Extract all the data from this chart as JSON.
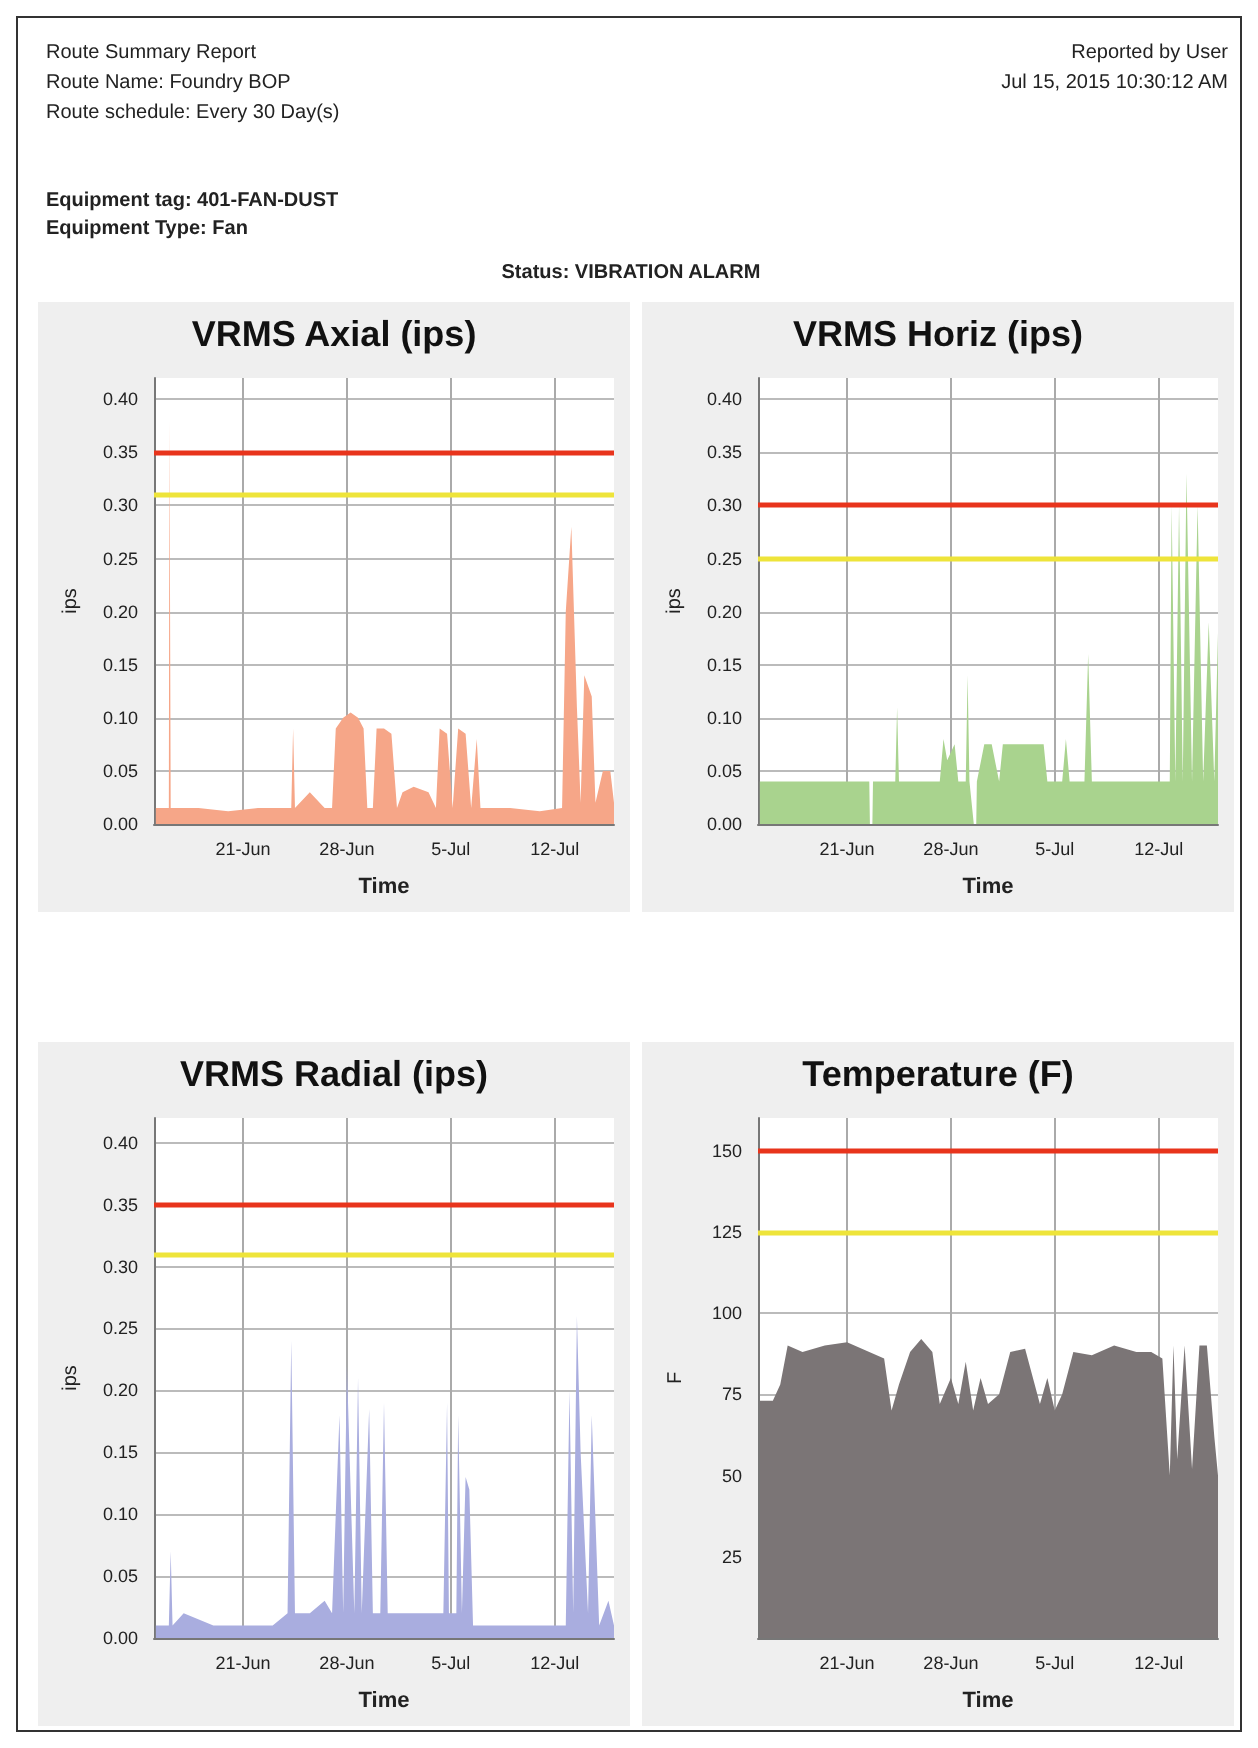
{
  "chart_data": [
    {
      "type": "other",
      "annotations": [
        "Route Summary Report",
        "Route Name: Foundry BOP",
        "Route schedule: Every 30 Day(s)",
        "Reported by User",
        "Jul 15, 2015 10:30:12 AM",
        "Equipment tag: 401-FAN-DUST",
        "Equipment Type: Fan",
        "Status: VIBRATION ALARM"
      ]
    },
    {
      "type": "area",
      "title": "VRMS Axial (ips)",
      "xlabel": "Time",
      "ylabel": "ips",
      "grid": true,
      "xlim": [
        "2015-06-15",
        "2015-07-16"
      ],
      "xticks": [
        {
          "value": "2015-06-21",
          "label": "21-Jun"
        },
        {
          "value": "2015-06-28",
          "label": "28-Jun"
        },
        {
          "value": "2015-07-05",
          "label": "5-Jul"
        },
        {
          "value": "2015-07-12",
          "label": "12-Jul"
        }
      ],
      "ylim": [
        0,
        0.42
      ],
      "yticks": [
        {
          "value": 0,
          "label": "0.00"
        },
        {
          "value": 0.05,
          "label": "0.05"
        },
        {
          "value": 0.1,
          "label": "0.10"
        },
        {
          "value": 0.15,
          "label": "0.15"
        },
        {
          "value": 0.2,
          "label": "0.20"
        },
        {
          "value": 0.25,
          "label": "0.25"
        },
        {
          "value": 0.3,
          "label": "0.30"
        },
        {
          "value": 0.35,
          "label": "0.35"
        },
        {
          "value": 0.4,
          "label": "0.40"
        }
      ],
      "ref_lines": [
        {
          "axis": "y",
          "value": 0.35,
          "color": "#e8341c"
        },
        {
          "axis": "y",
          "value": 0.31,
          "color": "#eee43a"
        }
      ],
      "series": [
        {
          "color": "#f6a688",
          "x": [
            "2015-06-15T03:00",
            "2015-06-16T00:00",
            "2015-06-16T01:00",
            "2015-06-16T03:00",
            "2015-06-18T00:00",
            "2015-06-20T00:00",
            "2015-06-22T00:00",
            "2015-06-24T06:00",
            "2015-06-24T09:00",
            "2015-06-24T12:00",
            "2015-06-25T12:00",
            "2015-06-26T12:00",
            "2015-06-27T00:00",
            "2015-06-27T06:00",
            "2015-06-27T18:00",
            "2015-06-28T06:00",
            "2015-06-28T18:00",
            "2015-06-29T03:00",
            "2015-06-29T09:00",
            "2015-06-29T18:00",
            "2015-06-30T00:00",
            "2015-06-30T12:00",
            "2015-07-01T00:00",
            "2015-07-01T09:00",
            "2015-07-01T18:00",
            "2015-07-02T12:00",
            "2015-07-03T12:00",
            "2015-07-04T00:00",
            "2015-07-04T06:00",
            "2015-07-04T18:00",
            "2015-07-05T03:00",
            "2015-07-05T12:00",
            "2015-07-06T00:00",
            "2015-07-06T09:00",
            "2015-07-06T18:00",
            "2015-07-07T00:00",
            "2015-07-09T00:00",
            "2015-07-11T00:00",
            "2015-07-12T12:00",
            "2015-07-12T18:00",
            "2015-07-13T03:00",
            "2015-07-13T12:00",
            "2015-07-13T18:00",
            "2015-07-14T00:00",
            "2015-07-14T12:00",
            "2015-07-14T18:00",
            "2015-07-15T06:00",
            "2015-07-15T18:00",
            "2015-07-16T00:00"
          ],
          "values": [
            0.015,
            0.015,
            0.38,
            0.015,
            0.015,
            0.012,
            0.015,
            0.015,
            0.09,
            0.015,
            0.03,
            0.015,
            0.015,
            0.09,
            0.1,
            0.105,
            0.1,
            0.09,
            0.015,
            0.015,
            0.09,
            0.09,
            0.085,
            0.015,
            0.03,
            0.035,
            0.03,
            0.015,
            0.09,
            0.085,
            0.015,
            0.09,
            0.085,
            0.015,
            0.08,
            0.015,
            0.015,
            0.012,
            0.015,
            0.2,
            0.28,
            0.11,
            0.02,
            0.14,
            0.12,
            0.02,
            0.05,
            0.05,
            0.02
          ]
        }
      ]
    },
    {
      "type": "area",
      "title": "VRMS Horiz (ips)",
      "xlabel": "Time",
      "ylabel": "ips",
      "grid": true,
      "xlim": [
        "2015-06-15",
        "2015-07-16"
      ],
      "xticks": [
        {
          "value": "2015-06-21",
          "label": "21-Jun"
        },
        {
          "value": "2015-06-28",
          "label": "28-Jun"
        },
        {
          "value": "2015-07-05",
          "label": "5-Jul"
        },
        {
          "value": "2015-07-12",
          "label": "12-Jul"
        }
      ],
      "ylim": [
        0,
        0.42
      ],
      "yticks": [
        {
          "value": 0,
          "label": "0.00"
        },
        {
          "value": 0.05,
          "label": "0.05"
        },
        {
          "value": 0.1,
          "label": "0.10"
        },
        {
          "value": 0.15,
          "label": "0.15"
        },
        {
          "value": 0.2,
          "label": "0.20"
        },
        {
          "value": 0.25,
          "label": "0.25"
        },
        {
          "value": 0.3,
          "label": "0.30"
        },
        {
          "value": 0.35,
          "label": "0.35"
        },
        {
          "value": 0.4,
          "label": "0.40"
        }
      ],
      "ref_lines": [
        {
          "axis": "y",
          "value": 0.3,
          "color": "#e8341c"
        },
        {
          "axis": "y",
          "value": 0.25,
          "color": "#eee43a"
        }
      ],
      "series": [
        {
          "color": "#a9d38e",
          "x": [
            "2015-06-15T03:00",
            "2015-06-17T00:00",
            "2015-06-19T00:00",
            "2015-06-21T00:00",
            "2015-06-22T12:00",
            "2015-06-22T13:00",
            "2015-06-22T17:00",
            "2015-06-22T18:00",
            "2015-06-24T00:00",
            "2015-06-24T06:00",
            "2015-06-24T09:00",
            "2015-06-24T12:00",
            "2015-06-26T00:00",
            "2015-06-27T06:00",
            "2015-06-27T12:00",
            "2015-06-27T18:00",
            "2015-06-28T06:00",
            "2015-06-28T12:00",
            "2015-06-29T00:00",
            "2015-06-29T03:00",
            "2015-06-29T06:00",
            "2015-06-29T13:00",
            "2015-06-29T17:00",
            "2015-06-29T18:00",
            "2015-06-30T06:00",
            "2015-06-30T18:00",
            "2015-07-01T06:00",
            "2015-07-01T12:00",
            "2015-07-02T12:00",
            "2015-07-03T12:00",
            "2015-07-04T06:00",
            "2015-07-04T12:00",
            "2015-07-05T12:00",
            "2015-07-05T18:00",
            "2015-07-06T00:00",
            "2015-07-07T00:00",
            "2015-07-07T06:00",
            "2015-07-07T12:00",
            "2015-07-09T00:00",
            "2015-07-11T00:00",
            "2015-07-12T18:00",
            "2015-07-12T21:00",
            "2015-07-13T03:00",
            "2015-07-13T09:00",
            "2015-07-13T15:00",
            "2015-07-13T21:00",
            "2015-07-14T06:00",
            "2015-07-14T15:00",
            "2015-07-15T00:00",
            "2015-07-15T09:00",
            "2015-07-15T18:00",
            "2015-07-16T00:00"
          ],
          "values": [
            0.04,
            0.04,
            0.04,
            0.04,
            0.04,
            0,
            0,
            0.04,
            0.04,
            0.04,
            0.11,
            0.04,
            0.04,
            0.04,
            0.08,
            0.06,
            0.075,
            0.04,
            0.04,
            0.14,
            0.04,
            0,
            0,
            0.04,
            0.075,
            0.075,
            0.04,
            0.075,
            0.075,
            0.075,
            0.075,
            0.04,
            0.04,
            0.08,
            0.04,
            0.04,
            0.16,
            0.04,
            0.04,
            0.04,
            0.04,
            0.3,
            0.04,
            0.3,
            0.04,
            0.33,
            0.04,
            0.3,
            0.04,
            0.19,
            0.04,
            0.18
          ]
        }
      ]
    },
    {
      "type": "area",
      "title": "VRMS Radial (ips)",
      "xlabel": "Time",
      "ylabel": "ips",
      "grid": true,
      "xlim": [
        "2015-06-15",
        "2015-07-16"
      ],
      "xticks": [
        {
          "value": "2015-06-21",
          "label": "21-Jun"
        },
        {
          "value": "2015-06-28",
          "label": "28-Jun"
        },
        {
          "value": "2015-07-05",
          "label": "5-Jul"
        },
        {
          "value": "2015-07-12",
          "label": "12-Jul"
        }
      ],
      "ylim": [
        0,
        0.42
      ],
      "yticks": [
        {
          "value": 0,
          "label": "0.00"
        },
        {
          "value": 0.05,
          "label": "0.05"
        },
        {
          "value": 0.1,
          "label": "0.10"
        },
        {
          "value": 0.15,
          "label": "0.15"
        },
        {
          "value": 0.2,
          "label": "0.20"
        },
        {
          "value": 0.25,
          "label": "0.25"
        },
        {
          "value": 0.3,
          "label": "0.30"
        },
        {
          "value": 0.35,
          "label": "0.35"
        },
        {
          "value": 0.4,
          "label": "0.40"
        }
      ],
      "ref_lines": [
        {
          "axis": "y",
          "value": 0.35,
          "color": "#e8341c"
        },
        {
          "axis": "y",
          "value": 0.31,
          "color": "#eee43a"
        }
      ],
      "series": [
        {
          "color": "#a9addf",
          "x": [
            "2015-06-15T03:00",
            "2015-06-16T00:00",
            "2015-06-16T03:00",
            "2015-06-16T06:00",
            "2015-06-17T00:00",
            "2015-06-19T00:00",
            "2015-06-21T00:00",
            "2015-06-23T00:00",
            "2015-06-24T00:00",
            "2015-06-24T06:00",
            "2015-06-24T12:00",
            "2015-06-25T12:00",
            "2015-06-26T12:00",
            "2015-06-27T00:00",
            "2015-06-27T12:00",
            "2015-06-27T18:00",
            "2015-06-28T00:00",
            "2015-06-28T12:00",
            "2015-06-28T18:00",
            "2015-06-29T00:00",
            "2015-06-29T12:00",
            "2015-06-29T18:00",
            "2015-06-30T06:00",
            "2015-06-30T12:00",
            "2015-06-30T18:00",
            "2015-07-01T06:00",
            "2015-07-01T12:00",
            "2015-07-02T12:00",
            "2015-07-03T12:00",
            "2015-07-04T12:00",
            "2015-07-04T18:00",
            "2015-07-04T21:00",
            "2015-07-05T09:00",
            "2015-07-05T12:00",
            "2015-07-05T18:00",
            "2015-07-06T00:00",
            "2015-07-06T06:00",
            "2015-07-06T12:00",
            "2015-07-07T00:00",
            "2015-07-09T00:00",
            "2015-07-11T00:00",
            "2015-07-12T18:00",
            "2015-07-13T00:00",
            "2015-07-13T06:00",
            "2015-07-13T12:00",
            "2015-07-13T18:00",
            "2015-07-14T06:00",
            "2015-07-14T12:00",
            "2015-07-15T00:00",
            "2015-07-15T15:00",
            "2015-07-16T00:00"
          ],
          "values": [
            0.01,
            0.01,
            0.07,
            0.01,
            0.02,
            0.01,
            0.01,
            0.01,
            0.02,
            0.24,
            0.02,
            0.02,
            0.03,
            0.02,
            0.18,
            0.02,
            0.22,
            0.02,
            0.21,
            0.02,
            0.185,
            0.02,
            0.02,
            0.19,
            0.02,
            0.02,
            0.02,
            0.02,
            0.02,
            0.02,
            0.19,
            0.02,
            0.02,
            0.18,
            0.02,
            0.13,
            0.12,
            0.01,
            0.01,
            0.01,
            0.01,
            0.01,
            0.2,
            0.02,
            0.26,
            0.15,
            0.02,
            0.18,
            0.01,
            0.03,
            0.01
          ]
        }
      ]
    },
    {
      "type": "area",
      "title": "Temperature (F)",
      "xlabel": "Time",
      "ylabel": "F",
      "grid": true,
      "xlim": [
        "2015-06-15",
        "2015-07-16"
      ],
      "xticks": [
        {
          "value": "2015-06-21",
          "label": "21-Jun"
        },
        {
          "value": "2015-06-28",
          "label": "28-Jun"
        },
        {
          "value": "2015-07-05",
          "label": "5-Jul"
        },
        {
          "value": "2015-07-12",
          "label": "12-Jul"
        }
      ],
      "ylim": [
        0,
        160
      ],
      "yticks": [
        25,
        50,
        75,
        100,
        125,
        150
      ],
      "ref_lines": [
        {
          "axis": "y",
          "value": 150,
          "color": "#e8341c"
        },
        {
          "axis": "y",
          "value": 125,
          "color": "#eee43a"
        }
      ],
      "series": [
        {
          "color": "#7b7576",
          "x": [
            "2015-06-15T03:00",
            "2015-06-16T00:00",
            "2015-06-16T12:00",
            "2015-06-17T00:00",
            "2015-06-18T00:00",
            "2015-06-19T12:00",
            "2015-06-21T00:00",
            "2015-06-22T12:00",
            "2015-06-23T12:00",
            "2015-06-24T00:00",
            "2015-06-24T12:00",
            "2015-06-25T06:00",
            "2015-06-26T00:00",
            "2015-06-26T18:00",
            "2015-06-27T06:00",
            "2015-06-28T00:00",
            "2015-06-28T12:00",
            "2015-06-29T00:00",
            "2015-06-29T12:00",
            "2015-06-30T00:00",
            "2015-06-30T12:00",
            "2015-07-01T06:00",
            "2015-07-02T00:00",
            "2015-07-03T00:00",
            "2015-07-04T00:00",
            "2015-07-04T12:00",
            "2015-07-05T00:00",
            "2015-07-05T12:00",
            "2015-07-06T06:00",
            "2015-07-07T12:00",
            "2015-07-09T00:00",
            "2015-07-10T12:00",
            "2015-07-11T12:00",
            "2015-07-12T06:00",
            "2015-07-12T18:00",
            "2015-07-13T00:00",
            "2015-07-13T06:00",
            "2015-07-13T18:00",
            "2015-07-14T06:00",
            "2015-07-14T18:00",
            "2015-07-15T06:00",
            "2015-07-15T18:00",
            "2015-07-16T00:00"
          ],
          "values": [
            73,
            73,
            78,
            90,
            88,
            90,
            91,
            88,
            86,
            70,
            78,
            88,
            92,
            88,
            72,
            80,
            72,
            85,
            70,
            80,
            72,
            75,
            88,
            89,
            72,
            80,
            70,
            75,
            88,
            87,
            90,
            88,
            88,
            86,
            50,
            90,
            55,
            90,
            52,
            90,
            90,
            62,
            50
          ]
        }
      ]
    }
  ]
}
